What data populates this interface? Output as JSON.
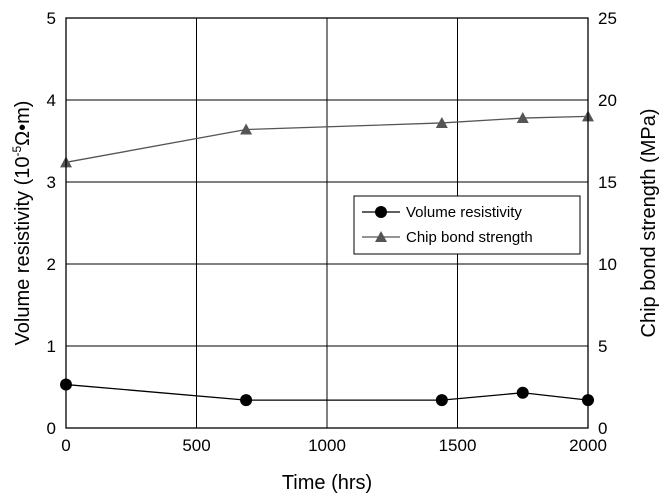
{
  "chart_data": {
    "type": "line",
    "x": [
      0,
      690,
      1440,
      1750,
      2000
    ],
    "xlabel": "Time (hrs)",
    "ylabel": "Volume resistivity (10⁻⁵Ω•m)",
    "ylabel_parts": {
      "pre": "Volume resistivity (10",
      "sup": "-5",
      "post": "Ω•m)"
    },
    "y2label": "Chip bond strength (MPa)",
    "xlim": [
      0,
      2000
    ],
    "ylim": [
      0,
      5
    ],
    "y2lim": [
      0,
      25
    ],
    "xticks": [
      "0",
      "500",
      "1000",
      "1500",
      "2000"
    ],
    "xtick_values": [
      0,
      500,
      1000,
      1500,
      2000
    ],
    "yticks": [
      "0",
      "1",
      "2",
      "3",
      "4",
      "5"
    ],
    "ytick_values": [
      0,
      1,
      2,
      3,
      4,
      5
    ],
    "y2ticks": [
      "0",
      "5",
      "10",
      "15",
      "20",
      "25"
    ],
    "y2tick_values": [
      0,
      5,
      10,
      15,
      20,
      25
    ],
    "grid": true,
    "legend_position": "center-right",
    "series": [
      {
        "name": "Volume resistivity",
        "axis": "left",
        "marker": "circle",
        "color": "#000000",
        "values": [
          0.53,
          0.34,
          0.34,
          0.43,
          0.34
        ]
      },
      {
        "name": "Chip bond strength",
        "axis": "right",
        "marker": "triangle",
        "color": "#555555",
        "values": [
          16.2,
          18.2,
          18.6,
          18.9,
          19.0
        ]
      }
    ]
  }
}
